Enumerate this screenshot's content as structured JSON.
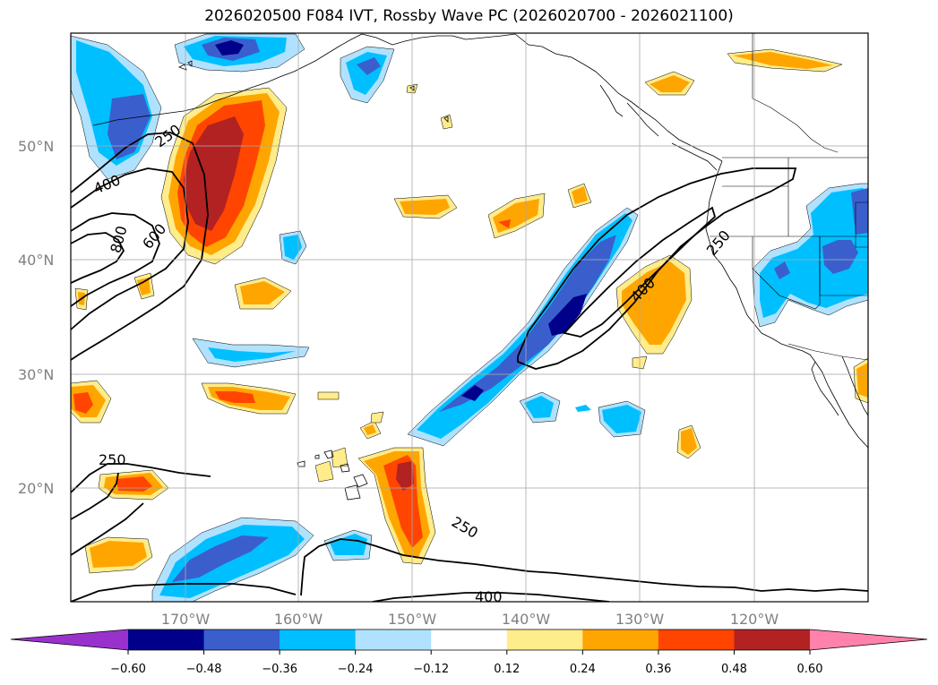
{
  "title": "2026020500 F084 IVT, Rossby Wave PC (2026020700 - 2026021100)",
  "lat_labels": [
    "50°N",
    "40°N",
    "30°N",
    "20°N"
  ],
  "lon_labels": [
    "170°W",
    "160°W",
    "150°W",
    "140°W",
    "130°W",
    "120°W"
  ],
  "contour_labels": [
    "250",
    "400",
    "600",
    "800",
    "250",
    "400",
    "250",
    "250",
    "400"
  ],
  "colorbar": {
    "ticks": [
      "−0.60",
      "−0.48",
      "−0.36",
      "−0.24",
      "−0.12",
      "0.12",
      "0.24",
      "0.36",
      "0.48",
      "0.60"
    ],
    "colors": [
      "#9932cc",
      "#00008b",
      "#3a5fcd",
      "#00bfff",
      "#b0e2ff",
      "#ffffff",
      "#ffec8b",
      "#ffa500",
      "#ff4500",
      "#b22222",
      "#ff82ab"
    ]
  },
  "palette": {
    "neg_light": "#b0e2ff",
    "neg_mid": "#00bfff",
    "neg_strong": "#3a5fcd",
    "neg_max": "#00008b",
    "pos_light": "#ffec8b",
    "pos_mid": "#ffa500",
    "pos_strong": "#ff4500",
    "pos_max": "#b22222"
  }
}
